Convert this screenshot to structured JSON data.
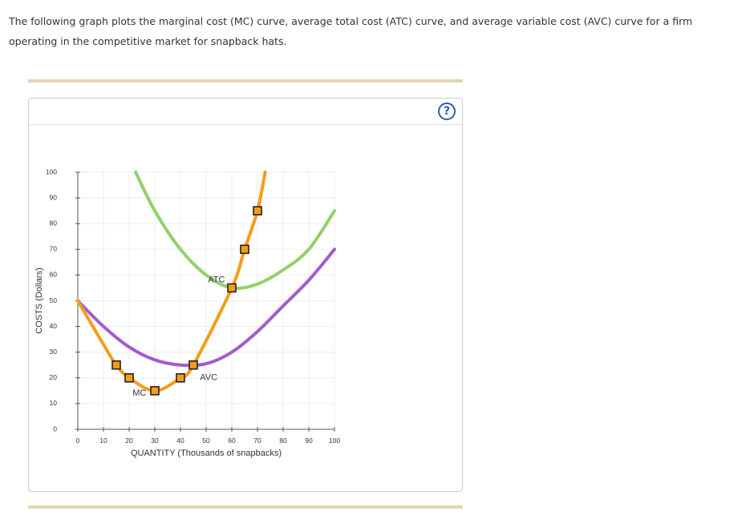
{
  "intro_text": "The following graph plots the marginal cost (MC) curve, average total cost (ATC) curve, and average variable cost (AVC) curve for a firm operating in the competitive market for snapback hats.",
  "help_label": "?",
  "colors": {
    "mc": "#f59c1a",
    "atc": "#8fd16a",
    "avc": "#a25bd0",
    "marker_fill": "#f59c1a",
    "marker_stroke": "#222222",
    "grid": "#eeeeee"
  },
  "chart_data": {
    "type": "line",
    "xlabel": "QUANTITY (Thousands of snapbacks)",
    "ylabel": "COSTS (Dollars)",
    "xlim": [
      0,
      100
    ],
    "ylim": [
      0,
      100
    ],
    "xticks": [
      0,
      10,
      20,
      30,
      40,
      50,
      60,
      70,
      80,
      90,
      100
    ],
    "yticks": [
      0,
      10,
      20,
      30,
      40,
      50,
      60,
      70,
      80,
      90,
      100
    ],
    "grid": true,
    "series": [
      {
        "name": "MC",
        "points": [
          [
            15,
            25
          ],
          [
            20,
            20
          ],
          [
            30,
            15
          ],
          [
            40,
            20
          ],
          [
            45,
            25
          ],
          [
            60,
            55
          ],
          [
            65,
            70
          ],
          [
            70,
            85
          ]
        ]
      },
      {
        "name": "ATC",
        "points": [
          [
            22.5,
            100
          ],
          [
            30,
            85
          ],
          [
            40,
            70
          ],
          [
            50,
            60
          ],
          [
            60,
            55
          ],
          [
            70,
            56.5
          ],
          [
            80,
            62
          ],
          [
            90,
            70
          ],
          [
            100,
            85
          ]
        ]
      },
      {
        "name": "AVC",
        "points": [
          [
            0,
            50
          ],
          [
            10,
            40
          ],
          [
            20,
            32
          ],
          [
            30,
            27
          ],
          [
            40,
            25
          ],
          [
            50,
            25.5
          ],
          [
            60,
            30
          ],
          [
            70,
            38
          ],
          [
            80,
            48
          ],
          [
            90,
            58
          ],
          [
            100,
            70
          ]
        ]
      }
    ],
    "mc_curve": [
      [
        0,
        50
      ],
      [
        10,
        33
      ],
      [
        15,
        25
      ],
      [
        20,
        20
      ],
      [
        30,
        15
      ],
      [
        40,
        20
      ],
      [
        45,
        25
      ],
      [
        60,
        55
      ],
      [
        65,
        70
      ],
      [
        70,
        85
      ],
      [
        73,
        100
      ]
    ],
    "labels": [
      {
        "text": "MC",
        "x": 24,
        "y": 14
      },
      {
        "text": "ATC",
        "x": 54,
        "y": 58
      },
      {
        "text": "AVC",
        "x": 51,
        "y": 20
      }
    ]
  }
}
